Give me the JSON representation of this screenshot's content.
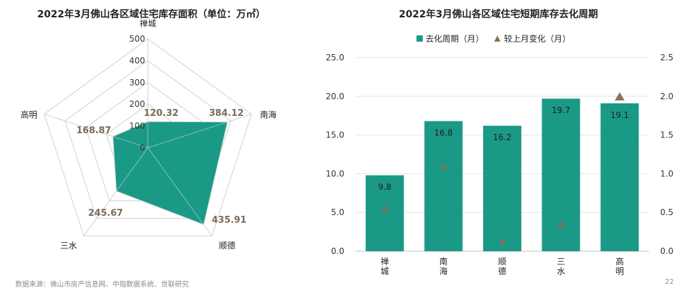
{
  "chart_data": [
    {
      "type": "radar",
      "title": "2022年3月佛山各区域住宅库存面积（单位：万㎡）",
      "axes": [
        "禅城",
        "南海",
        "顺德",
        "三水",
        "高明"
      ],
      "values": [
        120.32,
        384.12,
        435.91,
        245.67,
        168.87
      ],
      "value_labels": [
        "120.32",
        "384.12",
        "435.91",
        "245.67",
        "168.87"
      ],
      "rlim": [
        0,
        500
      ],
      "ticks": [
        "0",
        "100",
        "200",
        "300",
        "400",
        "500"
      ],
      "grid": true,
      "color": "#1a9a86"
    },
    {
      "type": "bar",
      "title": "2022年3月佛山各区域住宅短期库存去化周期",
      "categories": [
        "禅\n城",
        "南\n海",
        "顺\n德",
        "三\n水",
        "高\n明"
      ],
      "legend": {
        "position": "top"
      },
      "series": [
        {
          "name": "去化周期（月）",
          "kind": "bar",
          "axis": "left",
          "values": [
            9.8,
            16.8,
            16.2,
            19.7,
            19.1
          ],
          "labels": [
            "9.8",
            "16.8",
            "16.2",
            "19.7",
            "19.1"
          ],
          "color": "#1a9a86"
        },
        {
          "name": "较上月变化（月）",
          "kind": "marker",
          "axis": "right",
          "values": [
            0.55,
            1.1,
            0.13,
            0.35,
            2.0
          ],
          "color": "#8b6f55"
        }
      ],
      "ylim": [
        0,
        25
      ],
      "yticks": [
        "0.0",
        "5.0",
        "10.0",
        "15.0",
        "20.0",
        "25.0"
      ],
      "y2lim": [
        0,
        2.5
      ],
      "y2ticks": [
        "0.0",
        "0.5",
        "1.0",
        "1.5",
        "2.0",
        "2.5"
      ],
      "grid": true
    }
  ],
  "footer": {
    "source": "数据来源：佛山市房产信息网、中指数据系统、世联研究",
    "page": "22"
  }
}
